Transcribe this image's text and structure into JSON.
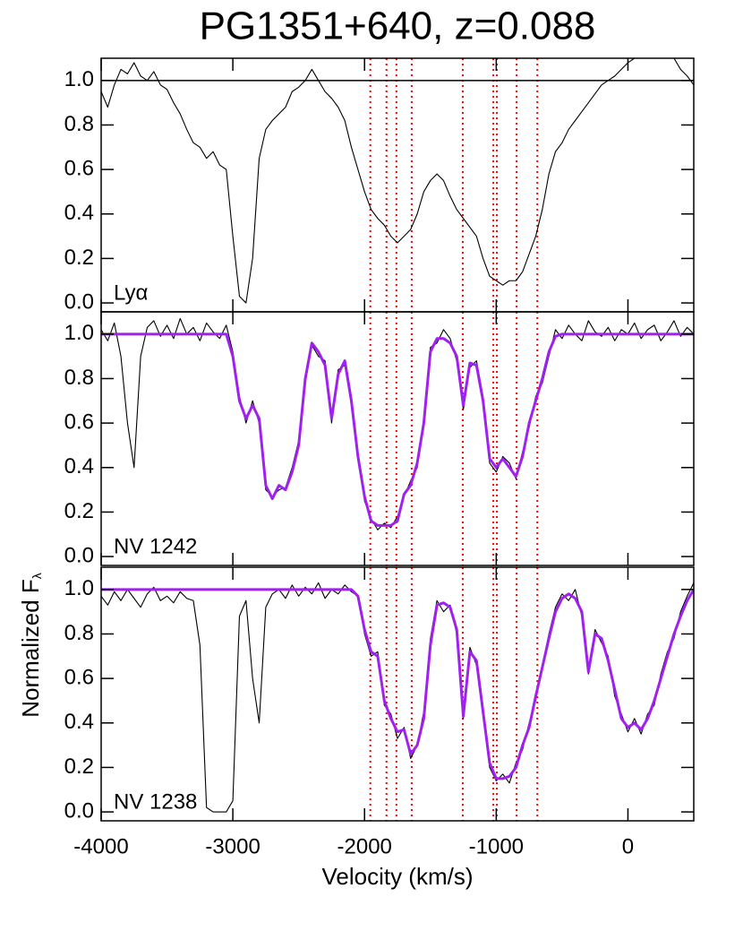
{
  "chart_data": [
    {
      "type": "line",
      "title": "PG1351+640, z=0.088",
      "label": "Lyα",
      "xlim": [
        -4000,
        500
      ],
      "ylim": [
        -0.04,
        1.1
      ],
      "xticks": [
        -4000,
        -3000,
        -2000,
        -1000,
        0
      ],
      "show_xtick_labels": false,
      "yticks": [
        {
          "value": 0,
          "label": "0.0"
        },
        0.2,
        0.4,
        0.6,
        0.8,
        {
          "value": 1,
          "label": "1.0"
        }
      ],
      "hlines": [
        1.0
      ],
      "hline_color": "#000000",
      "vlines": [
        -1956,
        -1833,
        -1758,
        -1642,
        -1254,
        -1022,
        -995,
        -845,
        -688
      ],
      "vline_color": "#ff0000",
      "x": [
        -4000,
        -3950,
        -3900,
        -3850,
        -3800,
        -3750,
        -3700,
        -3650,
        -3600,
        -3550,
        -3500,
        -3450,
        -3400,
        -3350,
        -3300,
        -3250,
        -3200,
        -3150,
        -3100,
        -3050,
        -3000,
        -2950,
        -2900,
        -2850,
        -2800,
        -2750,
        -2700,
        -2650,
        -2600,
        -2550,
        -2500,
        -2450,
        -2400,
        -2350,
        -2300,
        -2250,
        -2200,
        -2150,
        -2100,
        -2050,
        -2000,
        -1950,
        -1900,
        -1850,
        -1800,
        -1750,
        -1700,
        -1650,
        -1600,
        -1550,
        -1500,
        -1450,
        -1400,
        -1350,
        -1300,
        -1250,
        -1200,
        -1150,
        -1100,
        -1050,
        -1000,
        -950,
        -900,
        -850,
        -800,
        -750,
        -700,
        -650,
        -600,
        -550,
        -500,
        -450,
        -400,
        -350,
        -300,
        -250,
        -200,
        -150,
        -100,
        -50,
        0,
        50,
        100,
        150,
        200,
        250,
        300,
        350,
        400,
        450,
        500
      ],
      "series": [
        {
          "color": "#000000",
          "values": [
            0.95,
            0.88,
            0.98,
            1.05,
            1.03,
            1.08,
            1.02,
            1.0,
            1.04,
            0.98,
            0.96,
            0.9,
            0.85,
            0.78,
            0.72,
            0.7,
            0.65,
            0.68,
            0.62,
            0.6,
            0.3,
            0.03,
            0.0,
            0.2,
            0.65,
            0.78,
            0.82,
            0.85,
            0.88,
            0.95,
            0.97,
            1.0,
            1.05,
            1.0,
            0.95,
            0.92,
            0.88,
            0.82,
            0.7,
            0.6,
            0.5,
            0.42,
            0.38,
            0.35,
            0.3,
            0.27,
            0.3,
            0.33,
            0.4,
            0.5,
            0.55,
            0.58,
            0.55,
            0.48,
            0.42,
            0.38,
            0.34,
            0.3,
            0.2,
            0.12,
            0.1,
            0.08,
            0.1,
            0.1,
            0.14,
            0.22,
            0.3,
            0.42,
            0.58,
            0.68,
            0.72,
            0.78,
            0.82,
            0.86,
            0.9,
            0.94,
            0.98,
            1.0,
            1.02,
            1.05,
            1.08,
            1.1,
            1.1,
            1.1,
            1.1,
            1.1,
            1.1,
            1.1,
            1.05,
            1.02,
            0.98
          ]
        }
      ]
    },
    {
      "type": "line",
      "label": "NV 1242",
      "xlim": [
        -4000,
        500
      ],
      "ylim": [
        -0.04,
        1.1
      ],
      "xticks": [
        -4000,
        -3000,
        -2000,
        -1000,
        0
      ],
      "show_xtick_labels": false,
      "yticks": [
        {
          "value": 0,
          "label": "0.0"
        },
        0.2,
        0.4,
        0.6,
        0.8,
        {
          "value": 1,
          "label": "1.0"
        }
      ],
      "vlines": [
        -1956,
        -1833,
        -1758,
        -1642,
        -1254,
        -1022,
        -995,
        -845,
        -688
      ],
      "vline_color": "#ff0000",
      "x": [
        -4000,
        -3950,
        -3900,
        -3850,
        -3800,
        -3750,
        -3700,
        -3650,
        -3600,
        -3550,
        -3500,
        -3450,
        -3400,
        -3350,
        -3300,
        -3250,
        -3200,
        -3150,
        -3100,
        -3050,
        -3000,
        -2950,
        -2900,
        -2850,
        -2800,
        -2750,
        -2700,
        -2650,
        -2600,
        -2550,
        -2500,
        -2450,
        -2400,
        -2350,
        -2300,
        -2250,
        -2200,
        -2150,
        -2100,
        -2050,
        -2000,
        -1950,
        -1900,
        -1850,
        -1800,
        -1750,
        -1700,
        -1650,
        -1600,
        -1550,
        -1500,
        -1450,
        -1400,
        -1350,
        -1300,
        -1250,
        -1200,
        -1150,
        -1100,
        -1050,
        -1000,
        -950,
        -900,
        -850,
        -800,
        -750,
        -700,
        -650,
        -600,
        -550,
        -500,
        -450,
        -400,
        -350,
        -300,
        -250,
        -200,
        -150,
        -100,
        -50,
        0,
        50,
        100,
        150,
        200,
        250,
        300,
        350,
        400,
        450,
        500
      ],
      "series": [
        {
          "color": "#000000",
          "values": [
            1.02,
            0.97,
            1.05,
            0.9,
            0.6,
            0.4,
            0.9,
            1.03,
            1.06,
            0.99,
            1.04,
            0.98,
            1.07,
            1.0,
            1.03,
            0.97,
            1.05,
            1.01,
            0.98,
            1.04,
            0.92,
            0.72,
            0.6,
            0.7,
            0.6,
            0.3,
            0.27,
            0.3,
            0.31,
            0.4,
            0.52,
            0.78,
            0.95,
            0.9,
            0.88,
            0.6,
            0.84,
            0.86,
            0.68,
            0.47,
            0.25,
            0.17,
            0.12,
            0.15,
            0.13,
            0.18,
            0.27,
            0.34,
            0.4,
            0.62,
            0.94,
            0.96,
            1.02,
            0.98,
            0.88,
            0.66,
            0.85,
            0.88,
            0.72,
            0.42,
            0.38,
            0.45,
            0.42,
            0.35,
            0.47,
            0.58,
            0.72,
            0.78,
            0.9,
            1.02,
            0.98,
            1.04,
            1.0,
            0.97,
            1.06,
            1.01,
            0.99,
            1.03,
            0.97,
            1.02,
            1.0,
            1.05,
            0.98,
            1.02,
            1.04,
            0.97,
            1.01,
            1.06,
            0.99,
            1.03,
            1.0
          ]
        },
        {
          "color": "#a020f0",
          "values": [
            1.0,
            1.0,
            1.0,
            1.0,
            1.0,
            1.0,
            1.0,
            1.0,
            1.0,
            1.0,
            1.0,
            1.0,
            1.0,
            1.0,
            1.0,
            1.0,
            1.0,
            1.0,
            1.0,
            1.0,
            0.9,
            0.7,
            0.62,
            0.68,
            0.62,
            0.32,
            0.26,
            0.32,
            0.3,
            0.38,
            0.5,
            0.8,
            0.96,
            0.92,
            0.86,
            0.62,
            0.82,
            0.88,
            0.7,
            0.45,
            0.27,
            0.16,
            0.14,
            0.14,
            0.14,
            0.16,
            0.28,
            0.32,
            0.42,
            0.6,
            0.92,
            0.98,
            0.98,
            0.96,
            0.9,
            0.68,
            0.87,
            0.86,
            0.7,
            0.44,
            0.4,
            0.44,
            0.4,
            0.36,
            0.45,
            0.6,
            0.7,
            0.8,
            0.92,
            0.99,
            1.0,
            1.0,
            1.0,
            1.0,
            1.0,
            1.0,
            1.0,
            1.0,
            1.0,
            1.0,
            1.0,
            1.0,
            1.0,
            1.0,
            1.0,
            1.0,
            1.0,
            1.0,
            1.0,
            1.0,
            1.0
          ]
        }
      ]
    },
    {
      "type": "line",
      "label": "NV 1238",
      "xlabel": "Velocity (km/s)",
      "ylabel": "Normalized F",
      "ylabel_sub": "λ",
      "xlim": [
        -4000,
        500
      ],
      "ylim": [
        -0.04,
        1.1
      ],
      "xticks": [
        -4000,
        -3000,
        -2000,
        -1000,
        0
      ],
      "show_xtick_labels": true,
      "yticks": [
        {
          "value": 0,
          "label": "0.0"
        },
        0.2,
        0.4,
        0.6,
        0.8,
        {
          "value": 1,
          "label": "1.0"
        }
      ],
      "vlines": [
        -1956,
        -1833,
        -1758,
        -1642,
        -1254,
        -1022,
        -995,
        -845,
        -688
      ],
      "vline_color": "#ff0000",
      "x": [
        -4000,
        -3950,
        -3900,
        -3850,
        -3800,
        -3750,
        -3700,
        -3650,
        -3600,
        -3550,
        -3500,
        -3450,
        -3400,
        -3350,
        -3300,
        -3250,
        -3200,
        -3150,
        -3100,
        -3050,
        -3000,
        -2950,
        -2900,
        -2850,
        -2800,
        -2750,
        -2700,
        -2650,
        -2600,
        -2550,
        -2500,
        -2450,
        -2400,
        -2350,
        -2300,
        -2250,
        -2200,
        -2150,
        -2100,
        -2050,
        -2000,
        -1950,
        -1900,
        -1850,
        -1800,
        -1750,
        -1700,
        -1650,
        -1600,
        -1550,
        -1500,
        -1450,
        -1400,
        -1350,
        -1300,
        -1250,
        -1200,
        -1150,
        -1100,
        -1050,
        -1000,
        -950,
        -900,
        -850,
        -800,
        -750,
        -700,
        -650,
        -600,
        -550,
        -500,
        -450,
        -400,
        -350,
        -300,
        -250,
        -200,
        -150,
        -100,
        -50,
        0,
        50,
        100,
        150,
        200,
        250,
        300,
        350,
        400,
        450,
        500
      ],
      "series": [
        {
          "color": "#000000",
          "values": [
            0.97,
            0.93,
            0.99,
            0.95,
            1.0,
            0.96,
            0.92,
            0.98,
            1.01,
            0.95,
            0.97,
            0.94,
            0.99,
            0.96,
            0.95,
            0.75,
            0.02,
            0.0,
            0.0,
            0.0,
            0.05,
            0.88,
            0.95,
            0.6,
            0.4,
            0.92,
            0.98,
            1.0,
            0.96,
            1.02,
            0.97,
            1.01,
            0.98,
            1.03,
            0.96,
            1.0,
            0.98,
            1.02,
            0.99,
            0.97,
            0.8,
            0.7,
            0.72,
            0.48,
            0.44,
            0.33,
            0.38,
            0.24,
            0.3,
            0.45,
            0.78,
            0.95,
            0.9,
            0.93,
            0.8,
            0.42,
            0.74,
            0.66,
            0.43,
            0.2,
            0.14,
            0.17,
            0.13,
            0.22,
            0.28,
            0.4,
            0.5,
            0.66,
            0.8,
            0.92,
            0.98,
            0.95,
            1.0,
            0.88,
            0.62,
            0.82,
            0.76,
            0.7,
            0.52,
            0.44,
            0.36,
            0.42,
            0.35,
            0.44,
            0.48,
            0.62,
            0.72,
            0.78,
            0.9,
            0.97,
            1.03
          ]
        },
        {
          "color": "#a020f0",
          "values": [
            1.0,
            1.0,
            1.0,
            1.0,
            1.0,
            1.0,
            1.0,
            1.0,
            1.0,
            1.0,
            1.0,
            1.0,
            1.0,
            1.0,
            1.0,
            1.0,
            1.0,
            1.0,
            1.0,
            1.0,
            1.0,
            1.0,
            1.0,
            1.0,
            1.0,
            1.0,
            1.0,
            1.0,
            1.0,
            1.0,
            1.0,
            1.0,
            1.0,
            1.0,
            1.0,
            1.0,
            1.0,
            1.0,
            1.0,
            0.97,
            0.82,
            0.72,
            0.7,
            0.5,
            0.42,
            0.36,
            0.37,
            0.26,
            0.3,
            0.42,
            0.75,
            0.93,
            0.94,
            0.92,
            0.82,
            0.43,
            0.72,
            0.68,
            0.45,
            0.22,
            0.15,
            0.15,
            0.16,
            0.2,
            0.3,
            0.38,
            0.52,
            0.65,
            0.78,
            0.9,
            0.96,
            0.98,
            0.96,
            0.9,
            0.63,
            0.8,
            0.78,
            0.68,
            0.55,
            0.42,
            0.38,
            0.4,
            0.37,
            0.42,
            0.5,
            0.6,
            0.7,
            0.8,
            0.88,
            0.95,
            1.0
          ]
        }
      ]
    }
  ]
}
